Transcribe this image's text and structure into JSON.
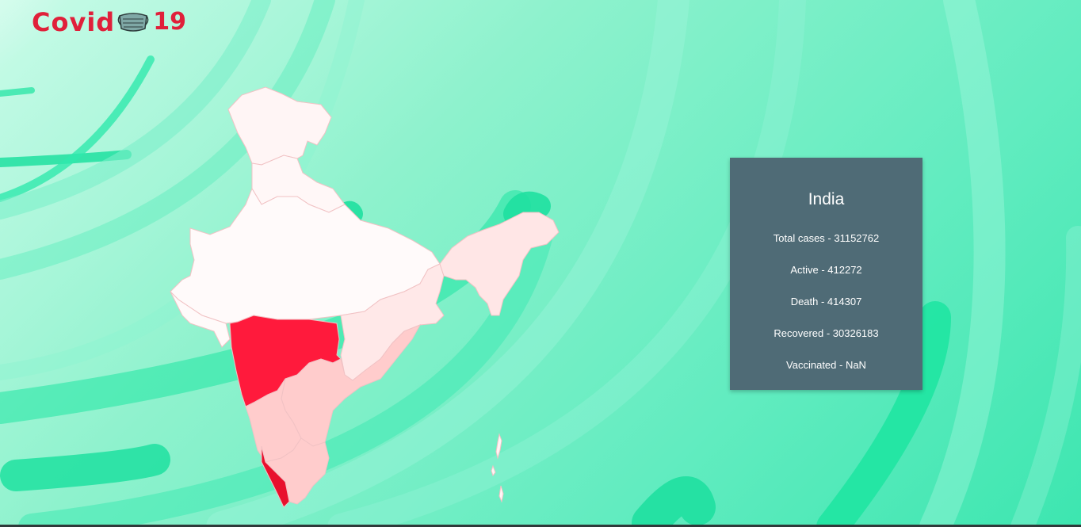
{
  "logo": {
    "text": "Covid",
    "number": "19",
    "icon": "face-mask-icon",
    "color": "#e0203a"
  },
  "map": {
    "region": "India",
    "colors": {
      "very_high": "#ff1a3c",
      "high": "#e8102d",
      "medium": "#ffcccc",
      "low": "#ffe6e6",
      "very_low": "#fff8f8"
    }
  },
  "card": {
    "title": "India",
    "stats": [
      {
        "label": "Total cases",
        "value": "31152762",
        "text": "Total cases - 31152762"
      },
      {
        "label": "Active",
        "value": "412272",
        "text": "Active - 412272"
      },
      {
        "label": "Death",
        "value": "414307",
        "text": "Death - 414307"
      },
      {
        "label": "Recovered",
        "value": "30326183",
        "text": "Recovered - 30326183"
      },
      {
        "label": "Vaccinated",
        "value": "NaN",
        "text": "Vaccinated - NaN"
      }
    ],
    "background": "#4f6b76"
  }
}
